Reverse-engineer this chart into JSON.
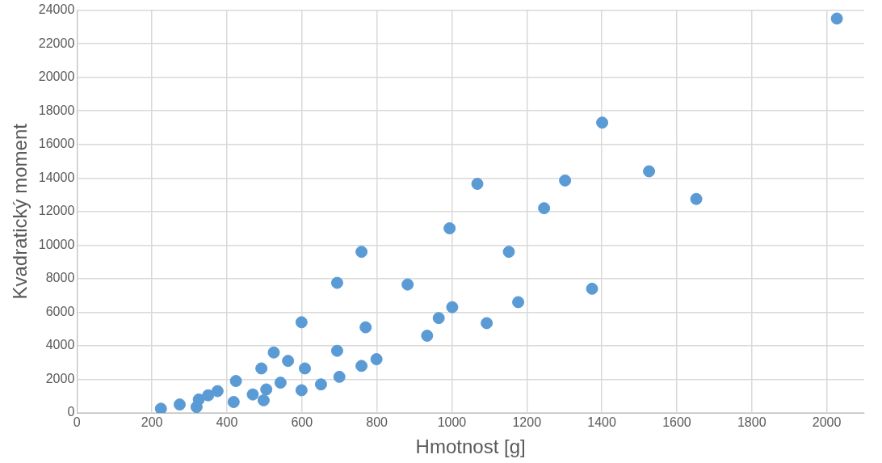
{
  "chart_data": {
    "type": "scatter",
    "xlabel": "Hmotnost [g]",
    "ylabel": "Kvadratický moment",
    "xlim": [
      0,
      2100
    ],
    "xticks": [
      0,
      200,
      400,
      600,
      800,
      1000,
      1200,
      1400,
      1600,
      1800,
      2000
    ],
    "ylim": [
      0,
      24000
    ],
    "yticks": [
      0,
      2000,
      4000,
      6000,
      8000,
      10000,
      12000,
      14000,
      16000,
      18000,
      20000,
      22000,
      24000
    ],
    "grid": true,
    "legend": false,
    "marker": "circle",
    "series": [
      {
        "color": "#5b9bd5",
        "x": [
          224,
          274,
          325,
          319,
          350,
          375,
          418,
          424,
          469,
          492,
          498,
          505,
          525,
          543,
          563,
          599,
          599,
          608,
          651,
          694,
          694,
          700,
          759,
          759,
          770,
          799,
          882,
          934,
          965,
          994,
          1001,
          1068,
          1093,
          1152,
          1177,
          1246,
          1302,
          1374,
          1401,
          1526,
          1652,
          2027
        ],
        "values": [
          250,
          500,
          800,
          350,
          1050,
          1300,
          650,
          1900,
          1100,
          2650,
          750,
          1400,
          3600,
          1800,
          3100,
          1350,
          5400,
          2650,
          1700,
          3700,
          7750,
          2150,
          2800,
          9600,
          5100,
          3200,
          7650,
          4600,
          5650,
          11000,
          6300,
          13650,
          5350,
          9600,
          6600,
          12200,
          13850,
          7400,
          17300,
          14400,
          12750,
          23500
        ]
      }
    ]
  }
}
